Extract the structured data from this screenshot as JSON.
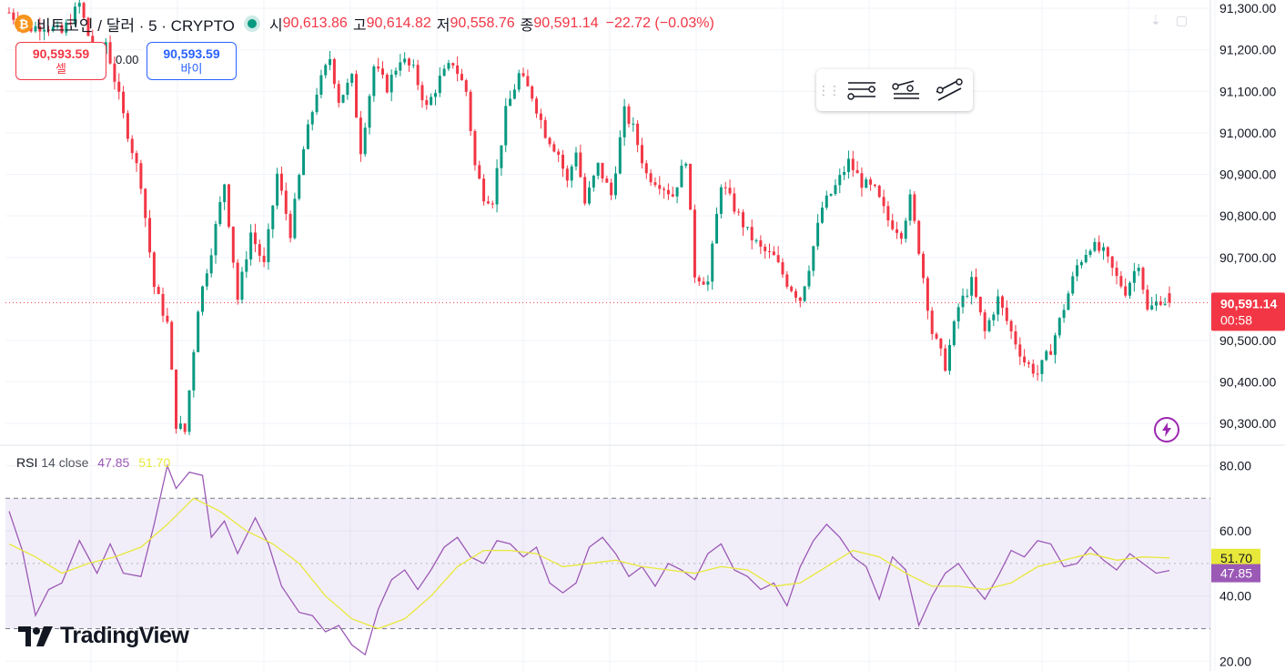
{
  "symbol": {
    "logo_glyph": "₿",
    "title": "비트코인 / 달러 · 5 · CRYPTO",
    "ohlc": [
      {
        "label": "시",
        "value": "90,613.86"
      },
      {
        "label": "고",
        "value": "90,614.82"
      },
      {
        "label": "저",
        "value": "90,558.76"
      },
      {
        "label": "종",
        "value": "90,591.14"
      }
    ],
    "change": "−22.72 (−0.03%)"
  },
  "trade": {
    "sell_price": "90,593.59",
    "sell_label": "셀",
    "spread": "0.00",
    "buy_price": "90,593.59",
    "buy_label": "바이"
  },
  "drawing_toolbar": {
    "tools": [
      "horizontal-lines-icon",
      "trend-lines-icon",
      "parallel-channel-icon"
    ]
  },
  "price_tag": {
    "value": "90,591.14",
    "countdown": "00:58",
    "color": "#f23645"
  },
  "rsi_legend": {
    "name": "RSI",
    "params": "14 close",
    "rsi_value": "47.85",
    "ma_value": "51.70"
  },
  "rsi_tags": {
    "ma": "51.70",
    "rsi": "47.85"
  },
  "branding": {
    "name": "TradingView"
  },
  "colors": {
    "up": "#089981",
    "down": "#f23645",
    "rsi_line": "#9b59b6",
    "rsi_ma": "#e8e83a",
    "rsi_band": "#7e57c2"
  },
  "chart_data": [
    {
      "type": "candlestick",
      "title": "",
      "ylim": [
        90250,
        91320
      ],
      "yticks": [
        90300,
        90400,
        90500,
        90600,
        90700,
        90800,
        90900,
        91000,
        91100,
        91200,
        91300
      ],
      "ytick_labels": [
        "90,300.00",
        "90,400.00",
        "90,500.00",
        "",
        "90,700.00",
        "90,800.00",
        "90,900.00",
        "91,000.00",
        "91,100.00",
        "91,200.00",
        "91,300.00"
      ],
      "last_price": 90591.14,
      "close_path": [
        [
          0,
          91290
        ],
        [
          4,
          91250
        ],
        [
          8,
          91260
        ],
        [
          12,
          91240
        ],
        [
          16,
          91310
        ],
        [
          20,
          91160
        ],
        [
          22,
          91220
        ],
        [
          26,
          91040
        ],
        [
          30,
          90880
        ],
        [
          33,
          90630
        ],
        [
          36,
          90540
        ],
        [
          38,
          90300
        ],
        [
          40,
          90280
        ],
        [
          43,
          90580
        ],
        [
          46,
          90720
        ],
        [
          49,
          90880
        ],
        [
          52,
          90600
        ],
        [
          55,
          90760
        ],
        [
          58,
          90680
        ],
        [
          61,
          90900
        ],
        [
          64,
          90760
        ],
        [
          67,
          90960
        ],
        [
          70,
          91100
        ],
        [
          73,
          91180
        ],
        [
          75,
          91080
        ],
        [
          78,
          91130
        ],
        [
          80,
          90960
        ],
        [
          83,
          91160
        ],
        [
          86,
          91110
        ],
        [
          89,
          91180
        ],
        [
          92,
          91150
        ],
        [
          95,
          91060
        ],
        [
          98,
          91130
        ],
        [
          101,
          91170
        ],
        [
          104,
          91100
        ],
        [
          106,
          90920
        ],
        [
          108,
          90850
        ],
        [
          110,
          90840
        ],
        [
          113,
          91050
        ],
        [
          116,
          91140
        ],
        [
          119,
          91090
        ],
        [
          122,
          91000
        ],
        [
          125,
          90950
        ],
        [
          127,
          90880
        ],
        [
          129,
          90960
        ],
        [
          131,
          90830
        ],
        [
          134,
          90920
        ],
        [
          137,
          90850
        ],
        [
          140,
          91050
        ],
        [
          142,
          91010
        ],
        [
          145,
          90900
        ],
        [
          148,
          90880
        ],
        [
          151,
          90850
        ],
        [
          154,
          90940
        ],
        [
          156,
          90660
        ],
        [
          159,
          90640
        ],
        [
          162,
          90880
        ],
        [
          165,
          90820
        ],
        [
          168,
          90760
        ],
        [
          171,
          90720
        ],
        [
          174,
          90700
        ],
        [
          177,
          90640
        ],
        [
          180,
          90600
        ],
        [
          182,
          90680
        ],
        [
          185,
          90820
        ],
        [
          188,
          90870
        ],
        [
          191,
          90930
        ],
        [
          194,
          90880
        ],
        [
          197,
          90860
        ],
        [
          200,
          90790
        ],
        [
          203,
          90760
        ],
        [
          205,
          90840
        ],
        [
          207,
          90720
        ],
        [
          210,
          90520
        ],
        [
          213,
          90440
        ],
        [
          216,
          90580
        ],
        [
          219,
          90640
        ],
        [
          222,
          90520
        ],
        [
          225,
          90600
        ],
        [
          228,
          90520
        ],
        [
          231,
          90450
        ],
        [
          234,
          90420
        ],
        [
          237,
          90480
        ],
        [
          240,
          90580
        ],
        [
          243,
          90680
        ],
        [
          246,
          90730
        ],
        [
          249,
          90710
        ],
        [
          252,
          90650
        ],
        [
          254,
          90620
        ],
        [
          257,
          90690
        ],
        [
          259,
          90570
        ],
        [
          262,
          90600
        ],
        [
          264,
          90591
        ]
      ],
      "num_candles": 265
    },
    {
      "type": "line",
      "title": "RSI 14 close",
      "ylim": [
        17,
        86
      ],
      "yticks": [
        20,
        40,
        60,
        80
      ],
      "ytick_labels": [
        "20.00",
        "40.00",
        "60.00",
        "80.00"
      ],
      "band": [
        30,
        70
      ],
      "midline": 50,
      "series": [
        {
          "name": "RSI",
          "values": [
            [
              0,
              66
            ],
            [
              3,
              54
            ],
            [
              6,
              34
            ],
            [
              9,
              42
            ],
            [
              12,
              44
            ],
            [
              16,
              57
            ],
            [
              20,
              47
            ],
            [
              23,
              56
            ],
            [
              26,
              47
            ],
            [
              30,
              46
            ],
            [
              33,
              62
            ],
            [
              36,
              80
            ],
            [
              38,
              73
            ],
            [
              41,
              78
            ],
            [
              44,
              77
            ],
            [
              46,
              58
            ],
            [
              49,
              63
            ],
            [
              52,
              53
            ],
            [
              56,
              64
            ],
            [
              59,
              56
            ],
            [
              62,
              43
            ],
            [
              66,
              35
            ],
            [
              69,
              34
            ],
            [
              72,
              29
            ],
            [
              75,
              31
            ],
            [
              78,
              25
            ],
            [
              81,
              22
            ],
            [
              84,
              36
            ],
            [
              87,
              45
            ],
            [
              90,
              48
            ],
            [
              93,
              42
            ],
            [
              96,
              48
            ],
            [
              99,
              55
            ],
            [
              102,
              58
            ],
            [
              105,
              52
            ],
            [
              108,
              50
            ],
            [
              111,
              57
            ],
            [
              114,
              56
            ],
            [
              117,
              52
            ],
            [
              120,
              55
            ],
            [
              123,
              44
            ],
            [
              126,
              41
            ],
            [
              129,
              44
            ],
            [
              132,
              55
            ],
            [
              135,
              58
            ],
            [
              138,
              53
            ],
            [
              141,
              46
            ],
            [
              144,
              49
            ],
            [
              147,
              43
            ],
            [
              150,
              50
            ],
            [
              153,
              48
            ],
            [
              156,
              45
            ],
            [
              159,
              53
            ],
            [
              162,
              56
            ],
            [
              165,
              48
            ],
            [
              168,
              46
            ],
            [
              171,
              42
            ],
            [
              174,
              44
            ],
            [
              177,
              37
            ],
            [
              180,
              49
            ],
            [
              183,
              57
            ],
            [
              186,
              62
            ],
            [
              189,
              58
            ],
            [
              192,
              52
            ],
            [
              195,
              49
            ],
            [
              198,
              39
            ],
            [
              201,
              52
            ],
            [
              204,
              48
            ],
            [
              207,
              31
            ],
            [
              210,
              40
            ],
            [
              213,
              47
            ],
            [
              216,
              50
            ],
            [
              219,
              44
            ],
            [
              222,
              39
            ],
            [
              225,
              46
            ],
            [
              228,
              54
            ],
            [
              231,
              52
            ],
            [
              234,
              57
            ],
            [
              237,
              56
            ],
            [
              240,
              49
            ],
            [
              243,
              50
            ],
            [
              246,
              55
            ],
            [
              249,
              51
            ],
            [
              252,
              48
            ],
            [
              255,
              53
            ],
            [
              258,
              50
            ],
            [
              261,
              47
            ],
            [
              264,
              47.85
            ]
          ]
        },
        {
          "name": "MA",
          "values": [
            [
              0,
              56
            ],
            [
              6,
              52
            ],
            [
              12,
              47
            ],
            [
              18,
              50
            ],
            [
              24,
              52
            ],
            [
              30,
              55
            ],
            [
              36,
              62
            ],
            [
              42,
              70
            ],
            [
              48,
              66
            ],
            [
              54,
              60
            ],
            [
              60,
              56
            ],
            [
              66,
              50
            ],
            [
              72,
              40
            ],
            [
              78,
              33
            ],
            [
              84,
              30
            ],
            [
              90,
              33
            ],
            [
              96,
              40
            ],
            [
              102,
              49
            ],
            [
              108,
              54
            ],
            [
              114,
              54
            ],
            [
              120,
              53
            ],
            [
              126,
              49
            ],
            [
              132,
              50
            ],
            [
              138,
              51
            ],
            [
              144,
              49
            ],
            [
              150,
              48
            ],
            [
              156,
              47
            ],
            [
              162,
              49
            ],
            [
              168,
              48
            ],
            [
              174,
              43
            ],
            [
              180,
              44
            ],
            [
              186,
              49
            ],
            [
              192,
              54
            ],
            [
              198,
              52
            ],
            [
              204,
              47
            ],
            [
              210,
              43
            ],
            [
              216,
              43
            ],
            [
              222,
              42
            ],
            [
              228,
              44
            ],
            [
              234,
              49
            ],
            [
              240,
              51
            ],
            [
              246,
              53
            ],
            [
              252,
              51
            ],
            [
              258,
              52
            ],
            [
              264,
              51.7
            ]
          ]
        }
      ]
    }
  ]
}
